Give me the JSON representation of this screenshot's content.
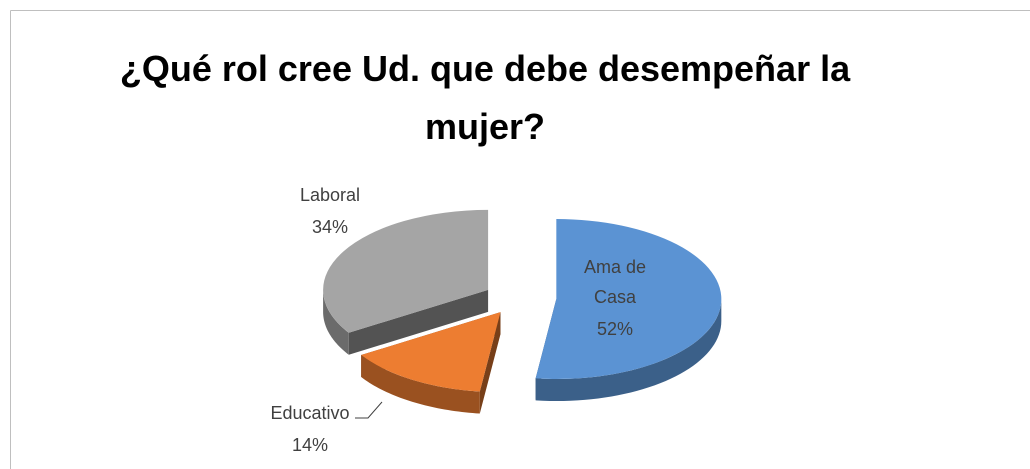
{
  "chart_data": {
    "type": "pie",
    "title": "¿Qué rol cree Ud. que debe desempeñar la mujer?",
    "categories": [
      "Ama de Casa",
      "Educativo",
      "Laboral"
    ],
    "values": [
      52,
      14,
      34
    ],
    "value_labels": [
      "52%",
      "14%",
      "34%"
    ],
    "colors": [
      "#5b93d3",
      "#ed7d31",
      "#a5a5a5"
    ]
  }
}
